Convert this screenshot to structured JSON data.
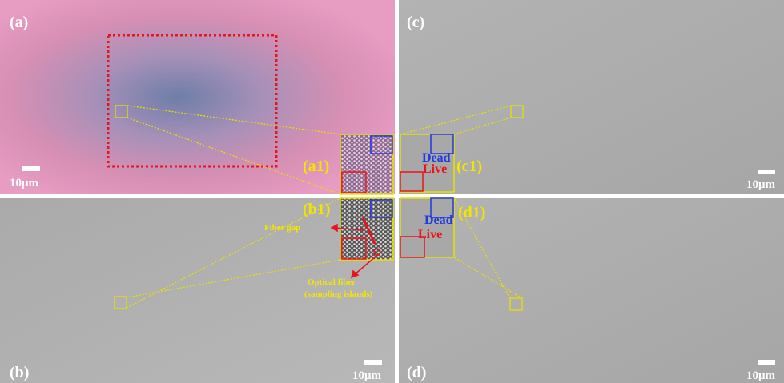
{
  "panels": [
    {
      "label": "(a)",
      "scale_bar": "10μm"
    },
    {
      "label": "(b)",
      "scale_bar": "10μm"
    },
    {
      "label": "(c)",
      "scale_bar": "10μm"
    },
    {
      "label": "(d)",
      "scale_bar": "10μm"
    }
  ],
  "insets": [
    {
      "label": "(a1)"
    },
    {
      "label": "(b1)"
    },
    {
      "label": "(c1)",
      "dead": "Dead",
      "live": "Live"
    },
    {
      "label": "(d1)",
      "dead": "Dead",
      "live": "Live"
    }
  ],
  "annotations": {
    "fiber_gap": "Fiber gap",
    "optical_fiber": [
      "Optical fiber",
      "(sampling islands)"
    ]
  }
}
